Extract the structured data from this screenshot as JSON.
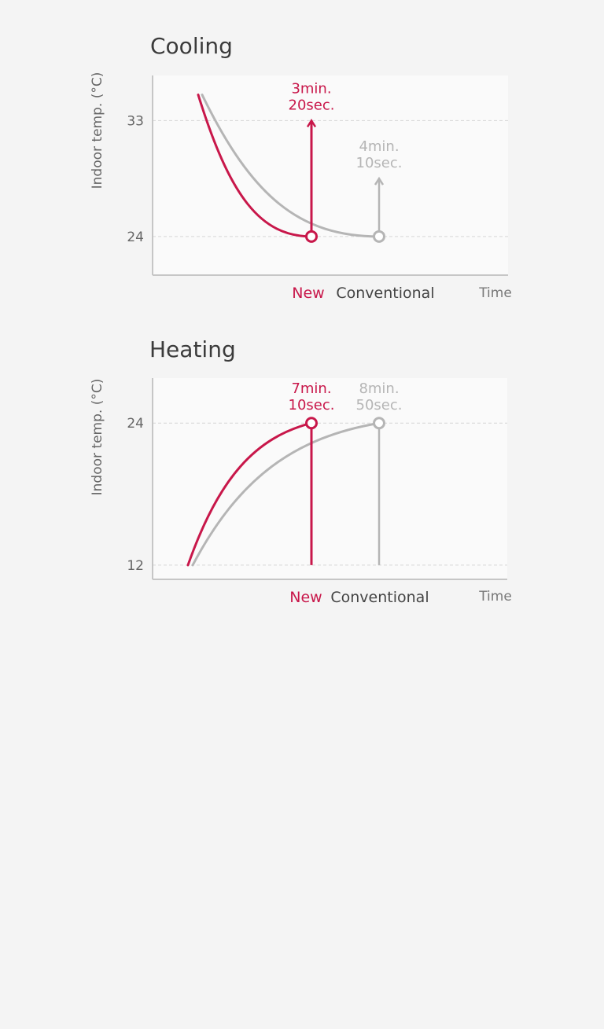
{
  "chart_data": [
    {
      "type": "line",
      "title": "Cooling",
      "ylabel": "Indoor temp. (°C)",
      "xlabel": "Time",
      "ylim": [
        21,
        36.5
      ],
      "yticks": [
        {
          "value": 33,
          "label": "33"
        },
        {
          "value": 24,
          "label": "24"
        }
      ],
      "grid": true,
      "series": [
        {
          "name": "New",
          "color": "#c8174a",
          "start_temp": 35,
          "end_temp": 24,
          "end_time": "3min. 20sec.",
          "annotation": [
            "3min.",
            "20sec."
          ],
          "arrow_top_temp": 33
        },
        {
          "name": "Conventional",
          "color": "#b5b5b5",
          "start_temp": 35,
          "end_temp": 24,
          "end_time": "4min. 10sec.",
          "annotation": [
            "4min.",
            "10sec."
          ],
          "arrow_top_temp": 28.5
        }
      ]
    },
    {
      "type": "line",
      "title": "Heating",
      "ylabel": "Indoor temp. (°C)",
      "xlabel": "Time",
      "ylim": [
        10.8,
        27.8
      ],
      "yticks": [
        {
          "value": 24,
          "label": "24"
        },
        {
          "value": 12,
          "label": "12"
        }
      ],
      "grid": true,
      "series": [
        {
          "name": "New",
          "color": "#c8174a",
          "start_temp": 12,
          "end_temp": 24,
          "end_time": "7min. 10sec.",
          "annotation": [
            "7min.",
            "10sec."
          ],
          "arrow_top_temp": 24.2
        },
        {
          "name": "Conventional",
          "color": "#b5b5b5",
          "start_temp": 12,
          "end_temp": 24,
          "end_time": "8min. 50sec.",
          "annotation": [
            "8min.",
            "50sec."
          ],
          "arrow_top_temp": 24.2
        }
      ]
    }
  ],
  "colors": {
    "background": "#f4f4f4",
    "plot_background": "#fafafa",
    "axis": "#c6c6c6",
    "grid": "#d6d6d6",
    "new": "#c8174a",
    "conventional": "#b5b5b5",
    "conventional_label": "#444444"
  }
}
